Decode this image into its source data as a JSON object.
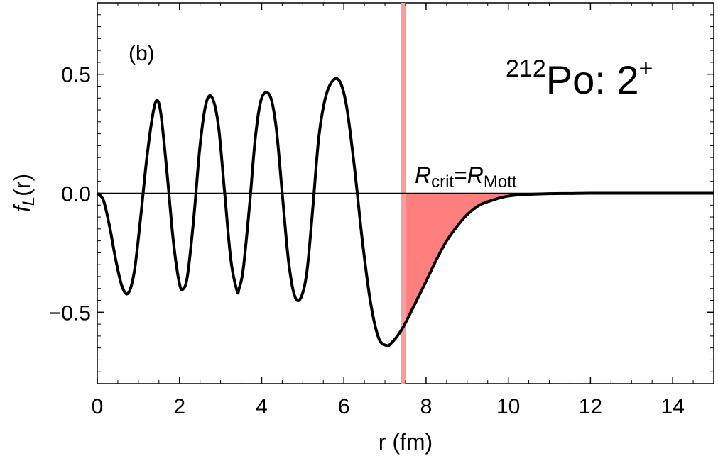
{
  "chart_data": {
    "type": "line",
    "panel_label": "(b)",
    "title_mass_number": "212",
    "title_main": "Po: 2",
    "title_parity": "+",
    "xlabel": "r (fm)",
    "ylabel_main": "f",
    "ylabel_sub": "L",
    "ylabel_arg": "(r)",
    "xlim": [
      0,
      15
    ],
    "ylim": [
      -0.8,
      0.8
    ],
    "x_ticks": [
      {
        "value": 0,
        "label": "0"
      },
      {
        "value": 2,
        "label": "2"
      },
      {
        "value": 4,
        "label": "4"
      },
      {
        "value": 6,
        "label": "6"
      },
      {
        "value": 8,
        "label": "8"
      },
      {
        "value": 10,
        "label": "10"
      },
      {
        "value": 12,
        "label": "12"
      },
      {
        "value": 14,
        "label": "14"
      }
    ],
    "y_ticks": [
      {
        "value": 0.5,
        "label": "0.5"
      },
      {
        "value": 0.0,
        "label": "0.0"
      },
      {
        "value": -0.5,
        "label": "−0.5"
      }
    ],
    "grid": false,
    "series": [
      {
        "color": "#000000",
        "x": [
          0,
          0.15,
          0.3,
          0.45,
          0.6,
          0.75,
          0.9,
          1.05,
          1.2,
          1.35,
          1.45,
          1.55,
          1.7,
          1.85,
          2.0,
          2.1,
          2.2,
          2.35,
          2.5,
          2.65,
          2.8,
          2.95,
          3.1,
          3.25,
          3.4,
          3.45,
          3.55,
          3.7,
          3.85,
          4.0,
          4.2,
          4.35,
          4.5,
          4.65,
          4.8,
          4.95,
          5.1,
          5.25,
          5.4,
          5.6,
          5.85,
          6.05,
          6.25,
          6.45,
          6.65,
          6.85,
          7.05,
          7.15,
          7.3,
          7.45,
          7.6,
          7.8,
          8.0,
          8.25,
          8.5,
          8.75,
          9.0,
          9.3,
          9.6,
          9.9,
          10.2,
          10.6,
          11.0,
          11.5,
          12.0,
          13.0,
          14.0,
          15.0
        ],
        "y": [
          0,
          -0.03,
          -0.14,
          -0.28,
          -0.39,
          -0.42,
          -0.33,
          -0.11,
          0.14,
          0.33,
          0.39,
          0.33,
          0.08,
          -0.2,
          -0.38,
          -0.4,
          -0.34,
          -0.1,
          0.2,
          0.38,
          0.4,
          0.28,
          0.0,
          -0.28,
          -0.41,
          -0.4,
          -0.32,
          -0.06,
          0.24,
          0.4,
          0.41,
          0.28,
          0.0,
          -0.28,
          -0.43,
          -0.44,
          -0.33,
          -0.05,
          0.25,
          0.43,
          0.48,
          0.38,
          0.12,
          -0.2,
          -0.46,
          -0.61,
          -0.64,
          -0.63,
          -0.6,
          -0.56,
          -0.51,
          -0.44,
          -0.37,
          -0.28,
          -0.2,
          -0.14,
          -0.09,
          -0.05,
          -0.03,
          -0.015,
          -0.008,
          -0.004,
          -0.002,
          -0.001,
          0,
          0,
          0,
          0
        ]
      }
    ],
    "critical_line": {
      "x": 7.45,
      "label_main": "R",
      "label_sub1": "crit",
      "label_eq": "=",
      "label_sub2": "Mott"
    },
    "shading": {
      "from_x": 7.45,
      "color": "#ff7f7f"
    },
    "colors": {
      "curve": "#000000",
      "critical_line": "#f4a0a0",
      "shading": "#ff7f7f",
      "zero_line": "#000000"
    }
  }
}
